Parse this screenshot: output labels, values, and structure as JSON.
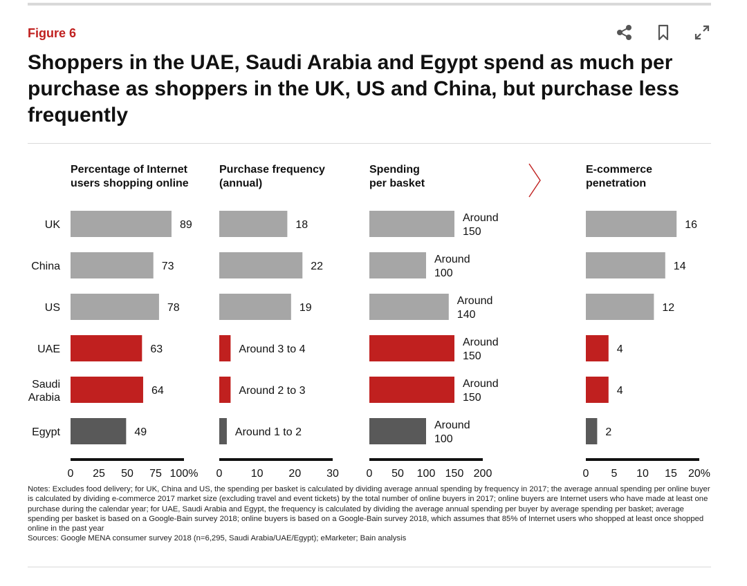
{
  "figure_label": "Figure 6",
  "title": "Shoppers in the UAE, Saudi Arabia and Egypt spend as much per purchase as shoppers in the UK, US and China, but purchase less frequently",
  "icons": [
    "share-icon",
    "bookmark-icon",
    "expand-icon"
  ],
  "colors": {
    "gray": "#a6a6a6",
    "red": "#c0201f",
    "dark": "#595959",
    "accent": "#c0201f"
  },
  "chart_data": {
    "type": "bar",
    "orientation": "horizontal",
    "categories": [
      {
        "label": "UK",
        "group": "gray"
      },
      {
        "label": "China",
        "group": "gray"
      },
      {
        "label": "US",
        "group": "gray"
      },
      {
        "label": "UAE",
        "group": "red"
      },
      {
        "label": "Saudi Arabia",
        "group": "red"
      },
      {
        "label": "Egypt",
        "group": "dark"
      }
    ],
    "panels": [
      {
        "title": [
          "Percentage of Internet",
          "users shopping online"
        ],
        "values": [
          89,
          73,
          78,
          63,
          64,
          49
        ],
        "labels": [
          [
            "89"
          ],
          [
            "73"
          ],
          [
            "78"
          ],
          [
            "63"
          ],
          [
            "64"
          ],
          [
            "49"
          ]
        ],
        "xlim": [
          0,
          100
        ],
        "ticks": [
          "0",
          "25",
          "50",
          "75",
          "100%"
        ],
        "tick_values": [
          0,
          25,
          50,
          75,
          100
        ]
      },
      {
        "title": [
          "Purchase frequency",
          "(annual)"
        ],
        "values": [
          18,
          22,
          19,
          3,
          3,
          2
        ],
        "labels": [
          [
            "18"
          ],
          [
            "22"
          ],
          [
            "19"
          ],
          [
            "Around 3 to 4"
          ],
          [
            "Around 2 to 3"
          ],
          [
            "Around 1 to 2"
          ]
        ],
        "xlim": [
          0,
          30
        ],
        "ticks": [
          "0",
          "10",
          "20",
          "30"
        ],
        "tick_values": [
          0,
          10,
          20,
          30
        ]
      },
      {
        "title": [
          "Spending",
          "per basket"
        ],
        "values": [
          150,
          100,
          140,
          150,
          150,
          100
        ],
        "labels": [
          [
            "Around",
            "150"
          ],
          [
            "Around",
            "100"
          ],
          [
            "Around",
            "140"
          ],
          [
            "Around",
            "150"
          ],
          [
            "Around",
            "150"
          ],
          [
            "Around",
            "100"
          ]
        ],
        "xlim": [
          0,
          200
        ],
        "ticks": [
          "0",
          "50",
          "100",
          "150",
          "200"
        ],
        "tick_values": [
          0,
          50,
          100,
          150,
          200
        ]
      },
      {
        "title": [
          "E-commerce",
          "penetration"
        ],
        "values": [
          16,
          14,
          12,
          4,
          4,
          2
        ],
        "labels": [
          [
            "16"
          ],
          [
            "14"
          ],
          [
            "12"
          ],
          [
            "4"
          ],
          [
            "4"
          ],
          [
            "2"
          ]
        ],
        "xlim": [
          0,
          20
        ],
        "ticks": [
          "0",
          "5",
          "10",
          "15",
          "20%"
        ],
        "tick_values": [
          0,
          5,
          10,
          15,
          20
        ]
      }
    ]
  },
  "notes": "Notes: Excludes food delivery; for UK, China and US, the spending per basket is calculated by dividing average annual spending by frequency in 2017; the average annual spending per online buyer is calculated by dividing e-commerce 2017 market size (excluding travel and event tickets) by the total number of online buyers in 2017; online buyers are Internet users who have made at least one purchase during the calendar year; for UAE, Saudi Arabia and Egypt, the frequency is calculated by dividing the average annual spending per buyer by average spending per basket; average spending per basket is based on a Google-Bain survey 2018; online buyers is based on a Google-Bain survey 2018, which assumes that 85% of Internet users who shopped at least once shopped online in the past year",
  "sources": "Sources: Google MENA consumer survey 2018 (n=6,295, Saudi Arabia/UAE/Egypt); eMarketer; Bain analysis"
}
